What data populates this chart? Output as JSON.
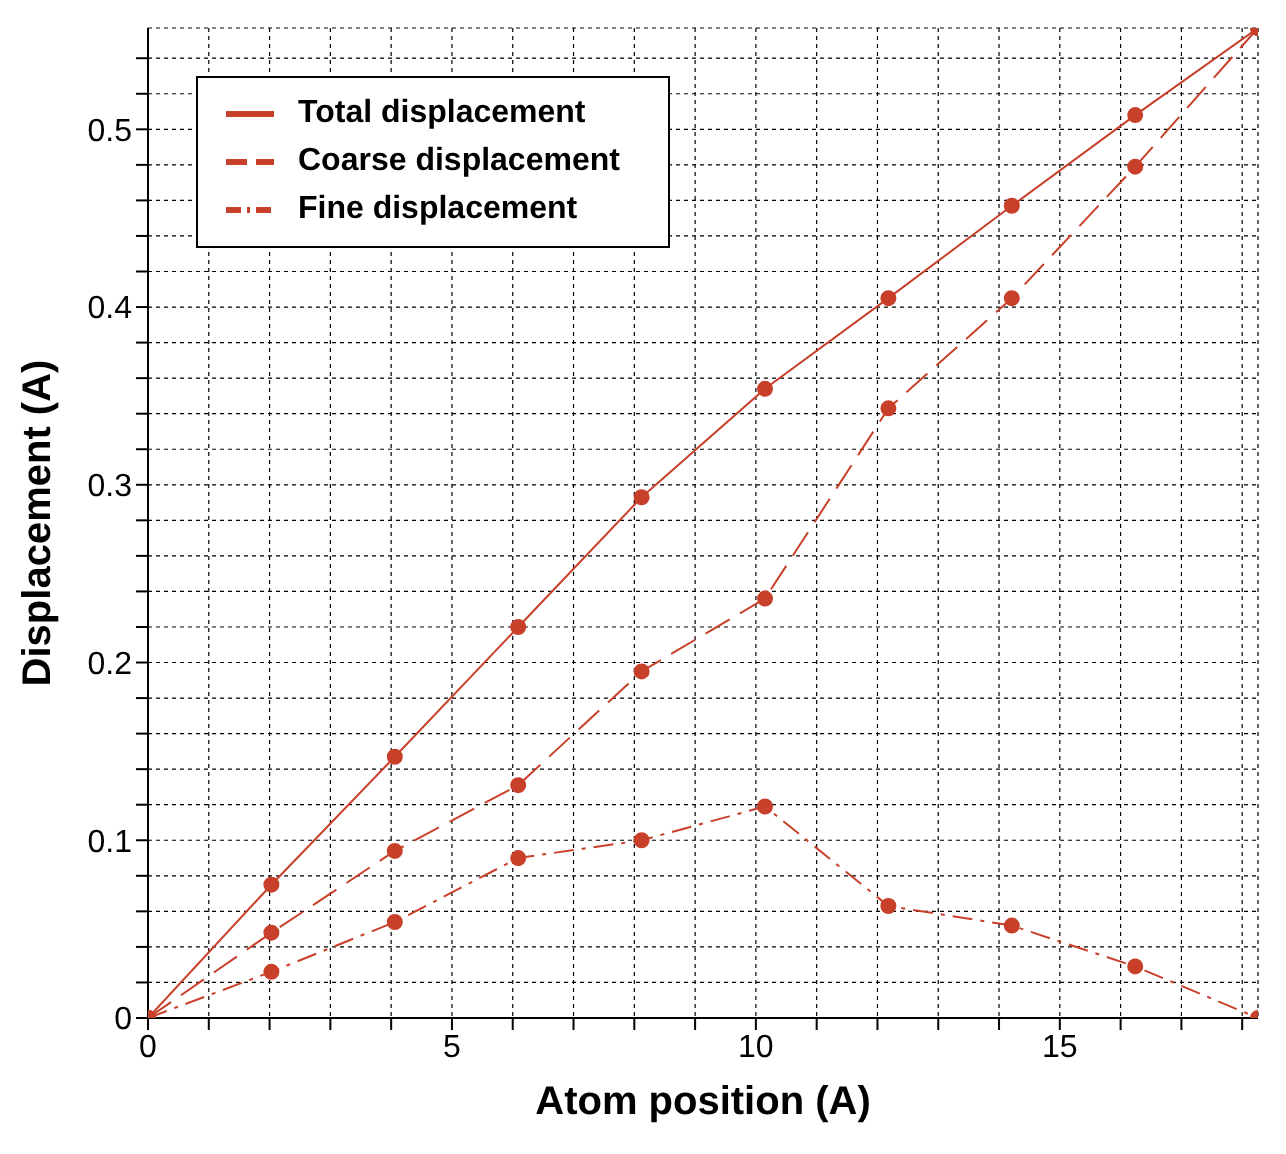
{
  "chart_data": {
    "type": "line",
    "xlabel": "Atom position (A)",
    "ylabel": "Displacement (A)",
    "x": [
      0,
      2.03,
      4.06,
      6.09,
      8.12,
      10.15,
      12.18,
      14.21,
      16.24,
      18.26
    ],
    "xlim": [
      0,
      18.26
    ],
    "xticks": [
      0,
      {
        "value": 1,
        "label": null
      },
      {
        "value": 2,
        "label": null
      },
      {
        "value": 3,
        "label": null
      },
      {
        "value": 4,
        "label": null
      },
      5,
      {
        "value": 6,
        "label": null
      },
      {
        "value": 7,
        "label": null
      },
      {
        "value": 8,
        "label": null
      },
      {
        "value": 9,
        "label": null
      },
      10,
      {
        "value": 11,
        "label": null
      },
      {
        "value": 12,
        "label": null
      },
      {
        "value": 13,
        "label": null
      },
      {
        "value": 14,
        "label": null
      },
      15,
      {
        "value": 16,
        "label": null
      },
      {
        "value": 17,
        "label": null
      },
      {
        "value": 18,
        "label": null
      }
    ],
    "ylim": [
      0,
      0.557
    ],
    "yticks": [
      0,
      {
        "value": 0.02,
        "label": null
      },
      {
        "value": 0.04,
        "label": null
      },
      {
        "value": 0.06,
        "label": null
      },
      {
        "value": 0.08,
        "label": null
      },
      0.1,
      {
        "value": 0.12,
        "label": null
      },
      {
        "value": 0.14,
        "label": null
      },
      {
        "value": 0.16,
        "label": null
      },
      {
        "value": 0.18,
        "label": null
      },
      0.2,
      {
        "value": 0.22,
        "label": null
      },
      {
        "value": 0.24,
        "label": null
      },
      {
        "value": 0.26,
        "label": null
      },
      {
        "value": 0.28,
        "label": null
      },
      0.3,
      {
        "value": 0.32,
        "label": null
      },
      {
        "value": 0.34,
        "label": null
      },
      {
        "value": 0.36,
        "label": null
      },
      {
        "value": 0.38,
        "label": null
      },
      0.4,
      {
        "value": 0.42,
        "label": null
      },
      {
        "value": 0.44,
        "label": null
      },
      {
        "value": 0.46,
        "label": null
      },
      {
        "value": 0.48,
        "label": null
      },
      0.5,
      {
        "value": 0.52,
        "label": null
      },
      {
        "value": 0.54,
        "label": null
      }
    ],
    "grid": true,
    "legend": "top left",
    "marker": "circle",
    "series": [
      {
        "name": "Total displacement",
        "color": "#c8402a",
        "line_style": "solid",
        "values": [
          0,
          0.075,
          0.147,
          0.22,
          0.293,
          0.354,
          0.405,
          0.457,
          0.508,
          0.557
        ]
      },
      {
        "name": "Coarse displacement",
        "color": "#c8402a",
        "line_style": "dashed",
        "values": [
          0,
          0.048,
          0.094,
          0.131,
          0.195,
          0.236,
          0.343,
          0.405,
          0.479,
          0.557
        ]
      },
      {
        "name": "Fine displacement",
        "color": "#c8402a",
        "line_style": "dotted",
        "values": [
          0,
          0.026,
          0.054,
          0.09,
          0.1,
          0.119,
          0.063,
          0.052,
          0.029,
          0
        ]
      }
    ]
  }
}
